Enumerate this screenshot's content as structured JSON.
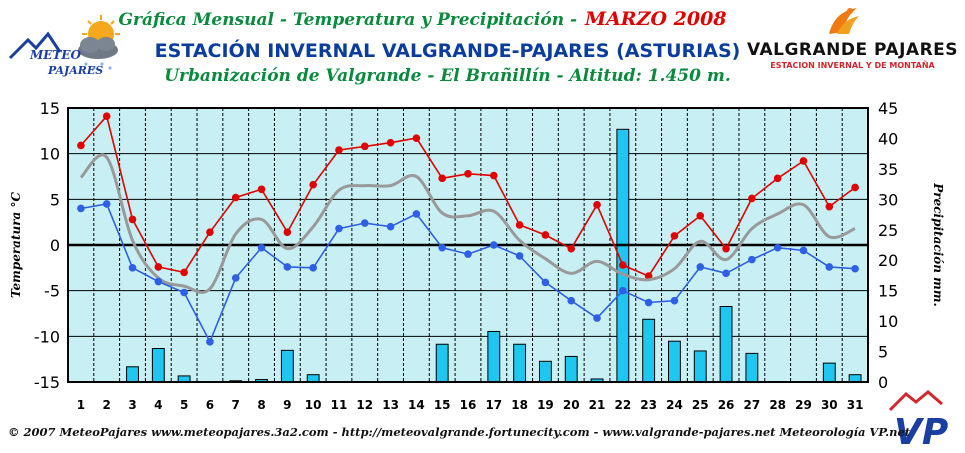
{
  "header": {
    "title": "Gráfica Mensual - Temperatura y Precipitación -",
    "month": "MARZO 2008",
    "station": "ESTACIÓN INVERNAL VALGRANDE-PAJARES (ASTURIAS)",
    "location": "Urbanización de Valgrande - El Brañillín - Altitud: 1.450 m."
  },
  "logos": {
    "left_line1": "METEO",
    "left_line2": "PAJARES",
    "right_name": "VALGRANDE PAJARES",
    "right_sub": "ESTACION INVERNAL Y DE MONTAÑA",
    "vp": "VP"
  },
  "footer": {
    "text": "© 2007 MeteoPajares www.meteopajares.3a2.com - http://meteovalgrande.fortunecity.com - www.valgrande-pajares.net Meteorología VP.net"
  },
  "colors": {
    "plot_bg": "#c8f0f4",
    "bar": "#1ec6f0",
    "max_line": "#e00000",
    "min_line": "#2f5fe6",
    "mean_line": "#999999",
    "title_green": "#0b8a3e",
    "title_blue": "#0a3d9e",
    "month_red": "#e00000"
  },
  "chart_data": {
    "type": "bar+line",
    "x": [
      1,
      2,
      3,
      4,
      5,
      6,
      7,
      8,
      9,
      10,
      11,
      12,
      13,
      14,
      15,
      16,
      17,
      18,
      19,
      20,
      21,
      22,
      23,
      24,
      25,
      26,
      27,
      28,
      29,
      30,
      31
    ],
    "ylabel_left": "Temperatura °C",
    "ylabel_right": "Precipitación mm.",
    "ylim_left": [
      -15,
      15
    ],
    "ylim_right": [
      0,
      45
    ],
    "yticks_left": [
      -15,
      -10,
      -5,
      0,
      5,
      10,
      15
    ],
    "yticks_right": [
      0,
      5,
      10,
      15,
      20,
      25,
      30,
      35,
      40,
      45
    ],
    "grid": true,
    "series": [
      {
        "kind": "line",
        "values": [
          10.9,
          14.1,
          2.8,
          -2.4,
          -3.0,
          1.4,
          5.2,
          6.1,
          1.4,
          6.6,
          10.4,
          10.8,
          11.2,
          11.7,
          7.3,
          7.8,
          7.6,
          2.2,
          1.1,
          -0.4,
          4.4,
          -2.2,
          -3.4,
          1.0,
          3.2,
          -0.4,
          5.1,
          7.3,
          9.2,
          4.2,
          6.3
        ]
      },
      {
        "kind": "line",
        "values": [
          7.4,
          9.6,
          0.5,
          -3.6,
          -4.5,
          -4.8,
          1.2,
          2.8,
          -0.4,
          2.0,
          6.0,
          6.5,
          6.5,
          7.5,
          3.5,
          3.2,
          3.7,
          0.5,
          -1.5,
          -3.1,
          -1.8,
          -3.2,
          -3.8,
          -2.6,
          0.4,
          -1.6,
          1.8,
          3.4,
          4.4,
          0.9,
          1.8
        ]
      },
      {
        "kind": "line",
        "values": [
          4.0,
          4.5,
          -2.5,
          -4.0,
          -5.2,
          -10.6,
          -3.6,
          -0.3,
          -2.4,
          -2.5,
          1.8,
          2.4,
          2.0,
          3.4,
          -0.3,
          -1.0,
          0.0,
          -1.2,
          -4.1,
          -6.1,
          -8.0,
          -5.0,
          -6.3,
          -6.1,
          -2.4,
          -3.1,
          -1.6,
          -0.3,
          -0.6,
          -2.4,
          -2.6
        ]
      },
      {
        "kind": "bar",
        "values": [
          0,
          0,
          2.5,
          5.5,
          1.0,
          0,
          0.2,
          0.4,
          5.2,
          1.2,
          0,
          0,
          0,
          0,
          6.2,
          0,
          8.3,
          6.2,
          3.4,
          4.2,
          0.5,
          41.5,
          10.3,
          6.7,
          5.1,
          12.4,
          4.7,
          0,
          0,
          3.1,
          1.2
        ]
      }
    ]
  }
}
